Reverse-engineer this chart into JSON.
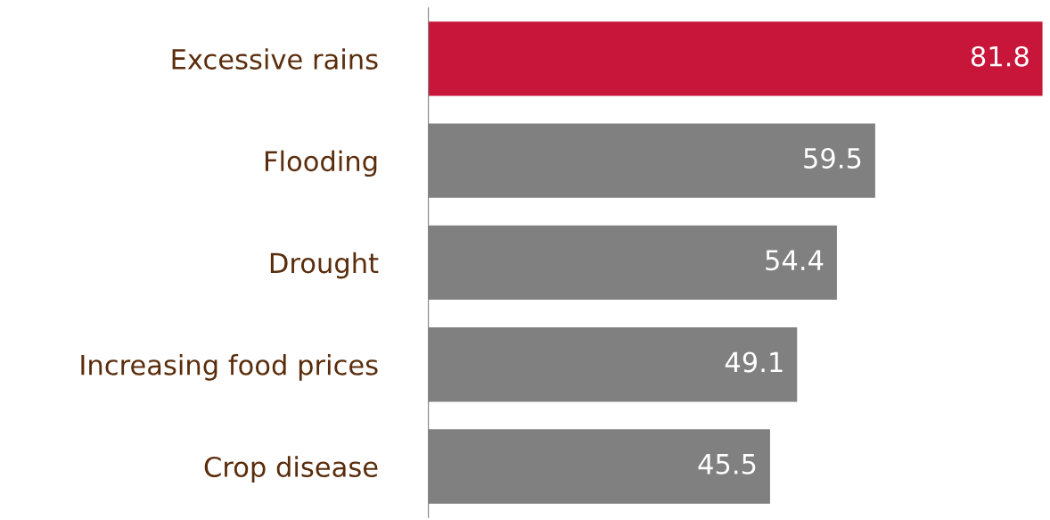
{
  "chart_data": {
    "type": "bar",
    "orientation": "horizontal",
    "categories": [
      "Excessive rains",
      "Flooding",
      "Drought",
      "Increasing food prices",
      "Crop disease"
    ],
    "values": [
      81.8,
      59.5,
      54.4,
      49.1,
      45.5
    ],
    "colors": [
      "#c8163a",
      "#808080",
      "#808080",
      "#808080",
      "#808080"
    ],
    "data_labels": true,
    "grid": false,
    "legend": false
  }
}
